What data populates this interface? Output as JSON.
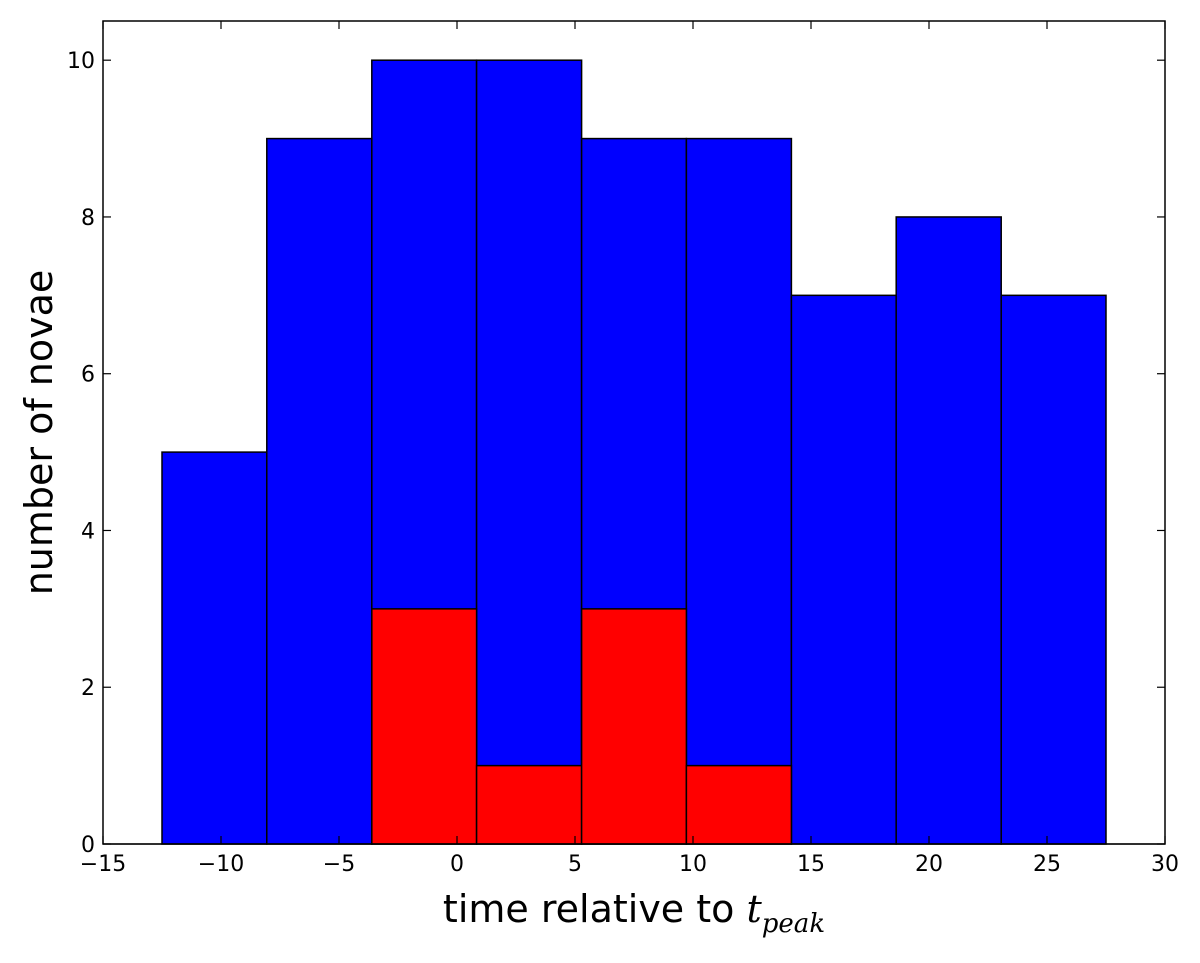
{
  "chart_data": {
    "type": "bar",
    "xlabel": "time relative to ",
    "xlabel_math": "t",
    "xlabel_math_sub": "peak",
    "ylabel": "number of novae",
    "xlim": [
      -15,
      30
    ],
    "ylim": [
      0,
      10.5
    ],
    "x_ticks": [
      -15,
      -10,
      -5,
      0,
      5,
      10,
      15,
      20,
      25,
      30
    ],
    "x_tick_labels": [
      "−15",
      "−10",
      "−5",
      "0",
      "5",
      "10",
      "15",
      "20",
      "25",
      "30"
    ],
    "y_ticks": [
      0,
      2,
      4,
      6,
      8,
      10
    ],
    "y_tick_labels": [
      "0",
      "2",
      "4",
      "6",
      "8",
      "10"
    ],
    "bin_edges": [
      -12.5,
      -8.06,
      -3.61,
      0.83,
      5.28,
      9.72,
      14.17,
      18.61,
      23.06,
      27.5
    ],
    "series": [
      {
        "color": "#0000ff",
        "values": [
          5,
          9,
          10,
          10,
          9,
          9,
          7,
          8,
          7
        ]
      },
      {
        "color": "#ff0000",
        "values": [
          0,
          0,
          3,
          1,
          3,
          1,
          0,
          0,
          0
        ]
      }
    ],
    "grid": false
  }
}
